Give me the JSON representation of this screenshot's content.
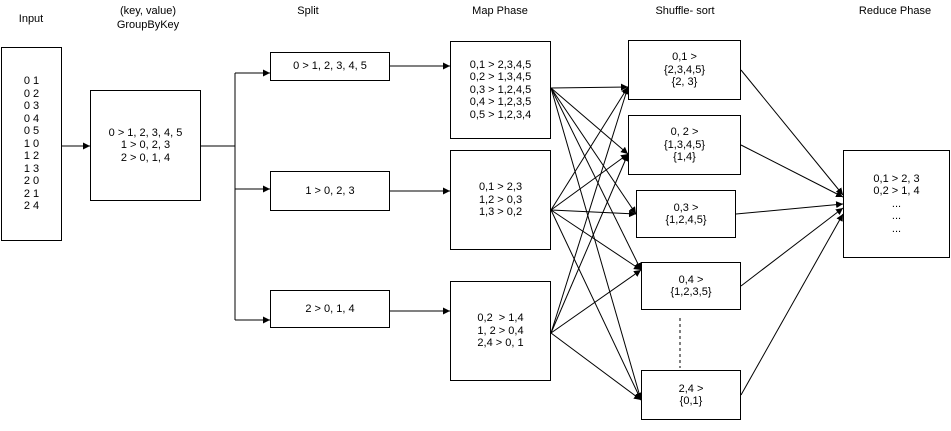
{
  "headers": {
    "input": "Input",
    "groupbykey_line1": "(key, value)",
    "groupbykey_line2": "GroupByKey",
    "split": "Split",
    "map": "Map Phase",
    "shuffle": "Shuffle- sort",
    "reduce": "Reduce Phase"
  },
  "input_box": {
    "lines": [
      "0 1",
      "0 2",
      "0 3",
      "0 4",
      "0 5",
      "1 0",
      "1 2",
      "1 3",
      "2 0",
      "2 1",
      "2 4"
    ]
  },
  "groupbykey_box": {
    "lines": [
      "0 > 1, 2, 3, 4, 5",
      "1 > 0, 2, 3",
      "2 > 0, 1, 4"
    ]
  },
  "split_boxes": [
    {
      "lines": [
        "0 > 1, 2, 3, 4, 5"
      ]
    },
    {
      "lines": [
        "1 > 0, 2, 3"
      ]
    },
    {
      "lines": [
        "2 > 0, 1, 4"
      ]
    }
  ],
  "map_boxes": [
    {
      "lines": [
        "0,1 > 2,3,4,5",
        "0,2 > 1,3,4,5",
        "0,3 > 1,2,4,5",
        "0,4 > 1,2,3,5",
        "0,5 > 1,2,3,4"
      ]
    },
    {
      "lines": [
        "0,1 > 2,3",
        "1,2 > 0,3",
        "1,3 > 0,2"
      ]
    },
    {
      "lines": [
        "0,2  > 1,4",
        "1, 2 > 0,4",
        "2,4 > 0, 1"
      ]
    }
  ],
  "shuffle_boxes": [
    {
      "lines": [
        "0,1 >",
        "{2,3,4,5}",
        "{2, 3}"
      ]
    },
    {
      "lines": [
        "0, 2 >",
        "{1,3,4,5}",
        "{1,4}"
      ]
    },
    {
      "lines": [
        "0,3 >",
        "{1,2,4,5}"
      ]
    },
    {
      "lines": [
        "0,4 >",
        "{1,2,3,5}"
      ]
    },
    {
      "lines": [
        "2,4 >",
        "{0,1}"
      ]
    }
  ],
  "reduce_box": {
    "lines": [
      "0,1 > 2, 3",
      "0,2 > 1, 4",
      "...",
      "...",
      "..."
    ]
  },
  "colors": {
    "stroke": "#000000",
    "background": "#ffffff"
  }
}
